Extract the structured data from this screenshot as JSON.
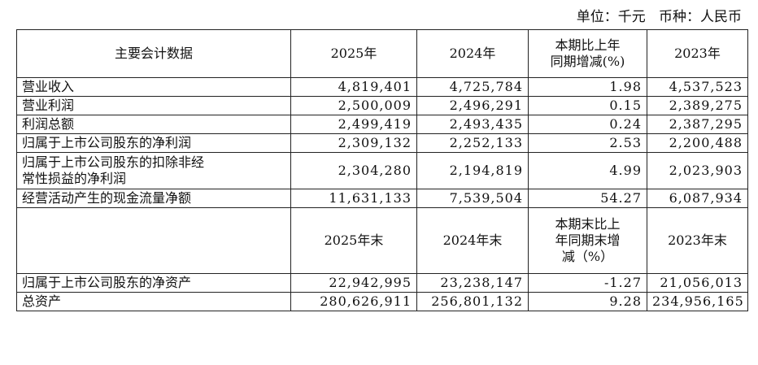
{
  "unit_line": "单位：千元   币种：人民币",
  "header": {
    "col0": "主要会计数据",
    "col1": "2025年",
    "col2": "2024年",
    "col3_l1": "本期比上年",
    "col3_l2": "同期增减(%)",
    "col4": "2023年"
  },
  "rows": [
    {
      "label": "营业收入",
      "v2025": "4,819,401",
      "v2024": "4,725,784",
      "change": "1.98",
      "v2023": "4,537,523"
    },
    {
      "label": "营业利润",
      "v2025": "2,500,009",
      "v2024": "2,496,291",
      "change": "0.15",
      "v2023": "2,389,275"
    },
    {
      "label": "利润总额",
      "v2025": "2,499,419",
      "v2024": "2,493,435",
      "change": "0.24",
      "v2023": "2,387,295"
    },
    {
      "label": "归属于上市公司股东的净利润",
      "v2025": "2,309,132",
      "v2024": "2,252,133",
      "change": "2.53",
      "v2023": "2,200,488"
    },
    {
      "label_l1": "归属于上市公司股东的扣除非经",
      "label_l2": "常性损益的净利润",
      "v2025": "2,304,280",
      "v2024": "2,194,819",
      "change": "4.99",
      "v2023": "2,023,903"
    },
    {
      "label": "经营活动产生的现金流量净额",
      "v2025": "11,631,133",
      "v2024": "7,539,504",
      "change": "54.27",
      "v2023": "6,087,934"
    }
  ],
  "header2": {
    "col0": "",
    "col1": "2025年末",
    "col2": "2024年末",
    "col3_l1": "本期末比上",
    "col3_l2": "年同期末增",
    "col3_l3": "减（%）",
    "col4": "2023年末"
  },
  "rows2": [
    {
      "label": "归属于上市公司股东的净资产",
      "v2025": "22,942,995",
      "v2024": "23,238,147",
      "change": "-1.27",
      "v2023": "21,056,013"
    },
    {
      "label": "总资产",
      "v2025": "280,626,911",
      "v2024": "256,801,132",
      "change": "9.28",
      "v2023": "234,956,165"
    }
  ]
}
